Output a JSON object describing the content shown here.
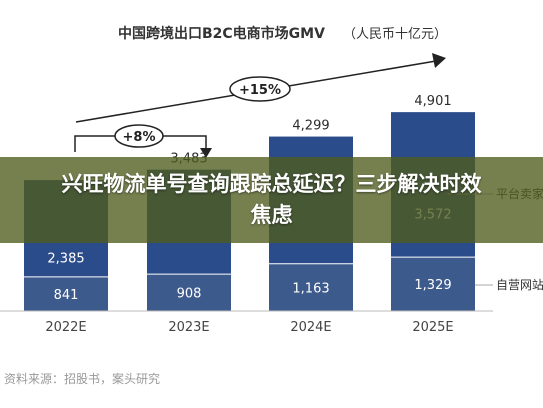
{
  "chart_data": {
    "type": "bar",
    "stacked": true,
    "title": "中国跨境出口B2C电商市场GMV",
    "unit": "（人民币十亿元）",
    "categories": [
      "2022E",
      "2023E",
      "2024E",
      "2025E"
    ],
    "totals": [
      "",
      "3,483",
      "4,299",
      "4,901"
    ],
    "series": [
      {
        "name": "自营网站",
        "values": [
          841,
          908,
          1163,
          1329
        ],
        "labels": [
          "841",
          "908",
          "1,163",
          "1,329"
        ],
        "color": "#3d5a8c"
      },
      {
        "name": "平台卖家",
        "values": [
          2385,
          2575,
          3136,
          3572
        ],
        "labels": [
          "2,385",
          "",
          "",
          "3,572"
        ],
        "color": "#2b4c8a"
      }
    ],
    "ylim": [
      0,
      5200
    ],
    "growth_annotations": [
      "+8%",
      "+15%"
    ],
    "legend_position": "right",
    "grid": false
  },
  "source": "资料来源：招股书，案头研究",
  "banner": {
    "text": "兴旺物流单号查询跟踪总延迟？三步解决时效焦虑"
  }
}
